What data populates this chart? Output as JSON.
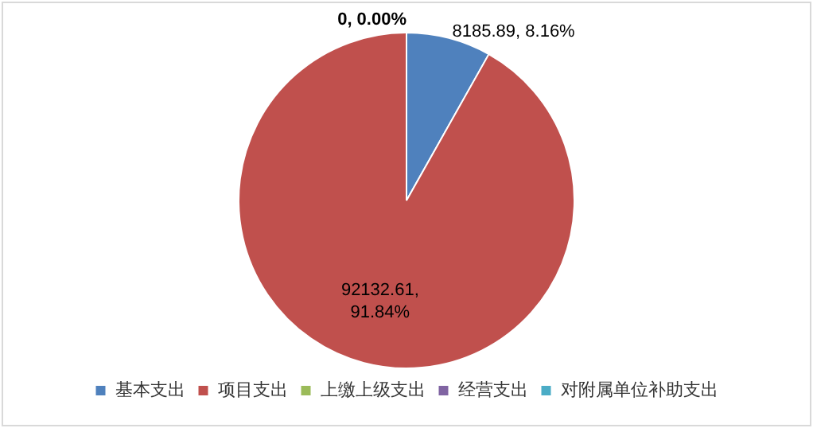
{
  "chart_data": {
    "type": "pie",
    "categories": [
      "基本支出",
      "项目支出",
      "上缴上级支出",
      "经营支出",
      "对附属单位补助支出"
    ],
    "values": [
      8185.89,
      92132.61,
      0,
      0,
      0
    ],
    "colors": [
      "#4f81bd",
      "#c0504d",
      "#9bbb59",
      "#8064a2",
      "#4bacc6"
    ],
    "value_labels": [
      "8185.89, 8.16%",
      "92132.61, 91.84%",
      "0, 0.00%",
      null,
      null
    ],
    "legend": "bottom"
  }
}
